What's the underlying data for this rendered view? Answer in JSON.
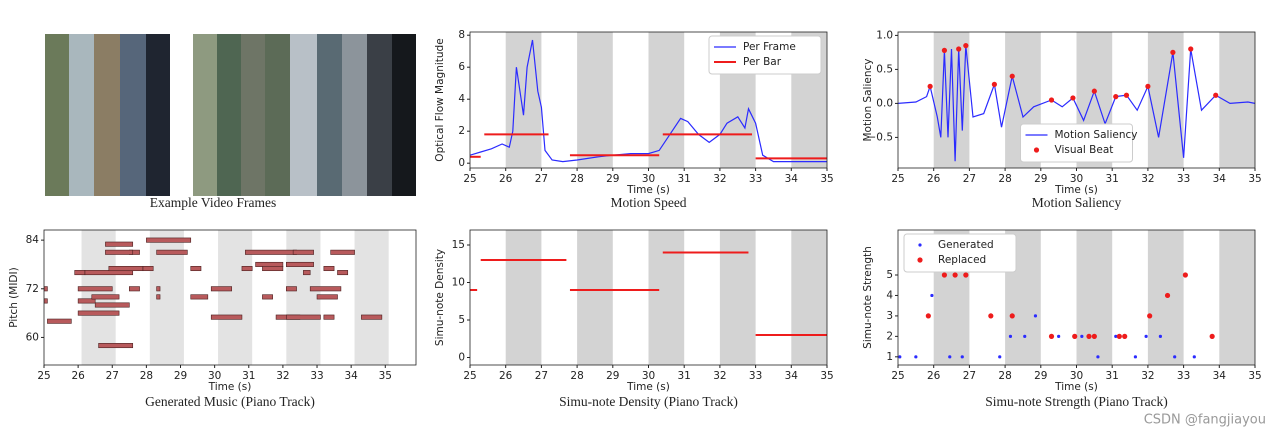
{
  "figure": {
    "frames_caption": "Example Video Frames",
    "watermark": "CSDN @fangjiayou"
  },
  "chart_data": [
    {
      "type": "line",
      "caption": "Motion Speed",
      "xlabel": "Time (s)",
      "ylabel": "Optical Flow Magnitude",
      "xlim": [
        25,
        35
      ],
      "ylim": [
        -0.3,
        8.2
      ],
      "xticks": [
        25,
        26,
        27,
        28,
        29,
        30,
        31,
        32,
        33,
        34,
        35
      ],
      "yticks": [
        0,
        2,
        4,
        6,
        8
      ],
      "bands": [
        [
          26,
          27
        ],
        [
          28,
          29
        ],
        [
          30,
          31
        ],
        [
          32,
          33
        ],
        [
          34,
          35
        ]
      ],
      "band_color": "#d3d3d3",
      "legend": "upper right",
      "series": [
        {
          "name": "Per Frame",
          "type": "line",
          "color": "#2b2bff",
          "x": [
            25,
            25.3,
            25.6,
            25.9,
            26.1,
            26.2,
            26.3,
            26.5,
            26.6,
            26.75,
            26.9,
            27.0,
            27.1,
            27.3,
            27.6,
            28.0,
            28.3,
            28.6,
            29.0,
            29.5,
            30.0,
            30.3,
            30.6,
            30.9,
            31.1,
            31.4,
            31.7,
            32.0,
            32.2,
            32.5,
            32.7,
            32.8,
            33.0,
            33.2,
            33.5,
            34,
            35
          ],
          "values": [
            0.5,
            0.7,
            0.9,
            1.2,
            1.0,
            2.0,
            6.0,
            3.0,
            6.0,
            7.7,
            4.5,
            3.5,
            0.8,
            0.2,
            0.1,
            0.2,
            0.3,
            0.4,
            0.5,
            0.6,
            0.6,
            0.8,
            1.8,
            2.8,
            2.6,
            1.8,
            1.3,
            1.8,
            2.5,
            2.9,
            2.2,
            3.4,
            2.5,
            0.5,
            0.1,
            0.1,
            0.1
          ]
        },
        {
          "name": "Per Bar",
          "type": "segments",
          "color": "#ee1c1c",
          "x0": [
            25,
            25.4,
            27.8,
            30.4,
            33
          ],
          "x1": [
            25.3,
            27.2,
            30.3,
            32.9,
            35
          ],
          "values": [
            0.4,
            1.8,
            0.5,
            1.8,
            0.3
          ]
        }
      ]
    },
    {
      "type": "line",
      "caption": "Motion Saliency",
      "xlabel": "Time (s)",
      "ylabel": "Motion Saliency",
      "xlim": [
        25,
        35
      ],
      "ylim": [
        -0.95,
        1.05
      ],
      "xticks": [
        25,
        26,
        27,
        28,
        29,
        30,
        31,
        32,
        33,
        34,
        35
      ],
      "yticks": [
        {
          "value": -0.5,
          "label": "−0.5"
        },
        {
          "value": 0,
          "label": "0.0"
        },
        0.5,
        {
          "value": 1,
          "label": "1.0"
        }
      ],
      "bands": [
        [
          26,
          27
        ],
        [
          28,
          29
        ],
        [
          30,
          31
        ],
        [
          32,
          33
        ],
        [
          34,
          35
        ]
      ],
      "band_color": "#d3d3d3",
      "legend": "lower center",
      "series": [
        {
          "name": "Motion Saliency",
          "type": "line",
          "color": "#2b2bff",
          "x": [
            25,
            25.5,
            25.8,
            25.9,
            26.1,
            26.2,
            26.3,
            26.4,
            26.5,
            26.6,
            26.7,
            26.8,
            26.9,
            27.1,
            27.4,
            27.7,
            27.9,
            28.2,
            28.5,
            28.8,
            29.3,
            29.6,
            29.9,
            30.2,
            30.5,
            30.8,
            31.1,
            31.4,
            31.7,
            32.0,
            32.3,
            32.7,
            33.0,
            33.2,
            33.5,
            33.9,
            34.3,
            34.8,
            35
          ],
          "values": [
            0,
            0.02,
            0.1,
            0.25,
            -0.2,
            -0.5,
            0.78,
            -0.5,
            0.8,
            -0.85,
            0.8,
            -0.4,
            0.85,
            -0.2,
            -0.15,
            0.28,
            -0.35,
            0.4,
            -0.2,
            -0.05,
            0.05,
            -0.05,
            0.08,
            -0.25,
            0.18,
            -0.3,
            0.1,
            0.12,
            -0.1,
            0.25,
            -0.5,
            0.75,
            -0.8,
            0.8,
            -0.1,
            0.12,
            0,
            0.02,
            0
          ]
        },
        {
          "name": "Visual Beat",
          "type": "scatter",
          "color": "#ee1c1c",
          "x": [
            25.9,
            26.3,
            26.7,
            26.9,
            27.7,
            28.2,
            29.3,
            29.9,
            30.5,
            31.1,
            31.4,
            32.0,
            32.7,
            33.2,
            33.9
          ],
          "values": [
            0.25,
            0.78,
            0.8,
            0.85,
            0.28,
            0.4,
            0.05,
            0.08,
            0.18,
            0.1,
            0.12,
            0.25,
            0.75,
            0.8,
            0.12
          ]
        }
      ]
    },
    {
      "type": "piano_roll",
      "caption": "Generated Music (Piano Track)",
      "xlabel": "Time (s)",
      "ylabel": "Pitch (MIDI)",
      "xlim": [
        25,
        35.9
      ],
      "ylim": [
        53.2,
        86.5
      ],
      "xticks": [
        25,
        26,
        27,
        28,
        29,
        30,
        31,
        32,
        33,
        34,
        35
      ],
      "yticks": [
        60,
        72,
        84
      ],
      "bands": [
        [
          26.1,
          27.1
        ],
        [
          28.1,
          29.1
        ],
        [
          30.1,
          31.1
        ],
        [
          32.1,
          33.1
        ],
        [
          34.1,
          35.1
        ]
      ],
      "band_color": "#e3e3e3",
      "series": [
        {
          "type": "notes",
          "color": "#b85a5c",
          "start": [
            25.0,
            25.0,
            25.1,
            25.9,
            26.0,
            26.0,
            26.2,
            26.4,
            26.5,
            26.9,
            26.0,
            27.5,
            27.5,
            26.8,
            26.8,
            28.0,
            28.3,
            27.9,
            28.3,
            28.3,
            26.6,
            29.3,
            29.3,
            29.9,
            29.9,
            30.8,
            30.9,
            31.2,
            31.4,
            31.4,
            31.8,
            32.1,
            32.1,
            32.1,
            32.3,
            32.6,
            32.8,
            33.0,
            33.2,
            33.2,
            33.4,
            33.6,
            34.3
          ],
          "end": [
            25.1,
            25.1,
            25.8,
            26.2,
            27.0,
            26.5,
            27.6,
            27.2,
            27.5,
            27.9,
            27.2,
            27.8,
            27.8,
            27.6,
            27.6,
            29.3,
            29.2,
            28.2,
            28.4,
            28.4,
            27.6,
            29.6,
            29.8,
            30.5,
            30.8,
            31.1,
            32.4,
            32.0,
            31.7,
            32.0,
            32.5,
            32.4,
            32.9,
            33.1,
            32.9,
            32.8,
            33.7,
            33.6,
            33.5,
            33.5,
            34.1,
            33.9,
            34.9
          ],
          "values": [
            72,
            69,
            64,
            76,
            72,
            69,
            76,
            70,
            68,
            77,
            66,
            81,
            72,
            83,
            81,
            84,
            81,
            77,
            72,
            70,
            58,
            77,
            70,
            72,
            65,
            77,
            81,
            78,
            70,
            77,
            65,
            72,
            78,
            65,
            81,
            76,
            72,
            70,
            77,
            65,
            81,
            76,
            65
          ]
        }
      ]
    },
    {
      "type": "line",
      "caption": "Simu-note Density (Piano Track)",
      "xlabel": "Time (s)",
      "ylabel": "Simu-note Density",
      "xlim": [
        25,
        35
      ],
      "ylim": [
        -1,
        17
      ],
      "xticks": [
        25,
        26,
        27,
        28,
        29,
        30,
        31,
        32,
        33,
        34,
        35
      ],
      "yticks": [
        0,
        5,
        10,
        15
      ],
      "bands": [
        [
          26,
          27
        ],
        [
          28,
          29
        ],
        [
          30,
          31
        ],
        [
          32,
          33
        ],
        [
          34,
          35
        ]
      ],
      "band_color": "#d3d3d3",
      "series": [
        {
          "type": "segments",
          "color": "#ee1c1c",
          "x0": [
            25,
            25.3,
            27.8,
            30.4,
            33
          ],
          "x1": [
            25.2,
            27.7,
            30.3,
            32.8,
            35
          ],
          "values": [
            9,
            13,
            9,
            14,
            3
          ]
        }
      ]
    },
    {
      "type": "scatter",
      "caption": "Simu-note Strength (Piano Track)",
      "xlabel": "Time (s)",
      "ylabel": "Simu-note Strength",
      "xlim": [
        25,
        35
      ],
      "ylim": [
        0.6,
        7.2
      ],
      "xticks": [
        25,
        26,
        27,
        28,
        29,
        30,
        31,
        32,
        33,
        34,
        35
      ],
      "yticks": [
        1,
        2,
        3,
        4,
        5
      ],
      "bands": [
        [
          26,
          27
        ],
        [
          28,
          29
        ],
        [
          30,
          31
        ],
        [
          32,
          33
        ],
        [
          34,
          35
        ]
      ],
      "band_color": "#d3d3d3",
      "legend": "upper left",
      "series": [
        {
          "name": "Generated",
          "type": "scatter",
          "color": "#2b2bff",
          "size": 1.6,
          "x": [
            25.05,
            25.5,
            25.95,
            26.45,
            26.8,
            27.85,
            28.15,
            28.55,
            28.85,
            29.5,
            30.15,
            30.6,
            31.1,
            31.65,
            31.95,
            32.35,
            32.75,
            33.3
          ],
          "values": [
            1,
            1,
            4,
            1,
            1,
            1,
            2,
            2,
            3,
            2,
            2,
            1,
            2,
            1,
            2,
            2,
            1,
            1
          ]
        },
        {
          "name": "Replaced",
          "type": "scatter",
          "color": "#ee1c1c",
          "size": 2.6,
          "x": [
            25.85,
            26.3,
            26.6,
            26.9,
            27.6,
            28.2,
            29.3,
            29.95,
            30.35,
            30.5,
            31.2,
            31.35,
            32.05,
            32.55,
            33.05,
            33.8
          ],
          "values": [
            3,
            5,
            5,
            5,
            3,
            3,
            2,
            2,
            2,
            2,
            2,
            2,
            3,
            4,
            5,
            2
          ]
        }
      ]
    }
  ]
}
